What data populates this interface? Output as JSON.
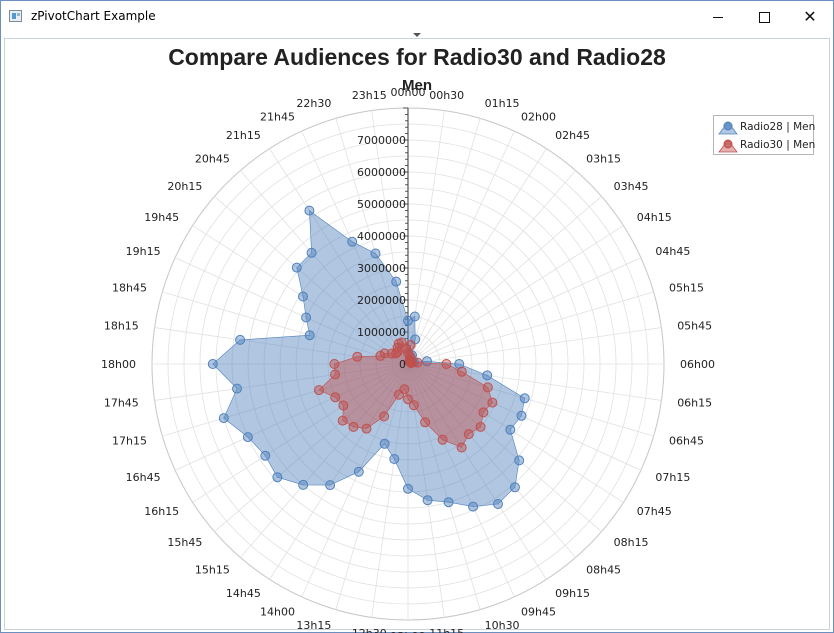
{
  "window": {
    "title": "zPivotChart Example",
    "close_glyph": "✕"
  },
  "chart_data": {
    "type": "radar",
    "title": "Compare Audiences for Radio30 and Radio28",
    "subtitle": "Men",
    "radial_range": [
      0,
      8000000
    ],
    "radial_tick_labels": [
      "0",
      "1000000",
      "2000000",
      "3000000",
      "4000000",
      "5000000",
      "6000000",
      "7000000"
    ],
    "grid": true,
    "legend_position": "top-right",
    "categories": [
      "00h00",
      "00h30",
      "01h15",
      "02h00",
      "02h45",
      "03h15",
      "03h45",
      "04h15",
      "04h45",
      "05h15",
      "05h45",
      "06h00",
      "06h15",
      "06h45",
      "07h15",
      "07h45",
      "08h15",
      "08h45",
      "09h15",
      "09h45",
      "10h30",
      "11h15",
      "12h00",
      "12h30",
      "13h15",
      "14h00",
      "14h45",
      "15h15",
      "15h45",
      "16h15",
      "16h45",
      "17h15",
      "17h45",
      "18h00",
      "18h15",
      "18h45",
      "19h15",
      "19h45",
      "20h15",
      "20h45",
      "21h15",
      "21h45",
      "22h30",
      "23h15"
    ],
    "series": [
      {
        "name": "Radio28 | Men",
        "color": "#4f81bd",
        "fill": "rgba(79,129,189,0.45)",
        "values": [
          1350000,
          1500000,
          800000,
          300000,
          200000,
          150000,
          150000,
          150000,
          150000,
          200000,
          600000,
          1600000,
          2500000,
          3800000,
          3900000,
          3800000,
          4600000,
          5100000,
          5200000,
          4900000,
          4500000,
          4300000,
          3900000,
          3000000,
          2600000,
          3700000,
          4500000,
          5000000,
          5400000,
          5300000,
          5500000,
          6000000,
          5400000,
          6100000,
          5300000,
          3200000,
          3500000,
          3900000,
          4600000,
          4600000,
          5700000,
          4200000,
          3600000,
          2600000
        ]
      },
      {
        "name": "Radio30 | Men",
        "color": "#c0504d",
        "fill": "rgba(192,80,77,0.45)",
        "values": [
          350000,
          600000,
          250000,
          150000,
          100000,
          100000,
          100000,
          100000,
          100000,
          100000,
          300000,
          1200000,
          1700000,
          2600000,
          2900000,
          2800000,
          3000000,
          2900000,
          3100000,
          2600000,
          1900000,
          1300000,
          1100000,
          800000,
          1000000,
          1800000,
          2400000,
          2600000,
          2700000,
          2400000,
          2500000,
          2900000,
          2300000,
          2300000,
          1600000,
          900000,
          800000,
          600000,
          500000,
          500000,
          600000,
          700000,
          700000,
          500000
        ]
      }
    ]
  }
}
